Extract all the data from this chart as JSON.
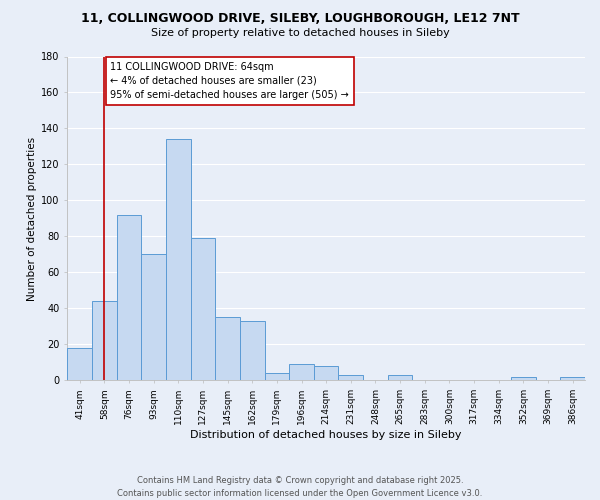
{
  "title_line1": "11, COLLINGWOOD DRIVE, SILEBY, LOUGHBOROUGH, LE12 7NT",
  "title_line2": "Size of property relative to detached houses in Sileby",
  "xlabel": "Distribution of detached houses by size in Sileby",
  "ylabel": "Number of detached properties",
  "bar_labels": [
    "41sqm",
    "58sqm",
    "76sqm",
    "93sqm",
    "110sqm",
    "127sqm",
    "145sqm",
    "162sqm",
    "179sqm",
    "196sqm",
    "214sqm",
    "231sqm",
    "248sqm",
    "265sqm",
    "283sqm",
    "300sqm",
    "317sqm",
    "334sqm",
    "352sqm",
    "369sqm",
    "386sqm"
  ],
  "bar_values": [
    18,
    44,
    92,
    70,
    134,
    79,
    35,
    33,
    4,
    9,
    8,
    3,
    0,
    3,
    0,
    0,
    0,
    0,
    2,
    0,
    2
  ],
  "bar_color": "#c6d9f1",
  "bar_edge_color": "#5b9bd5",
  "vline_x": 1,
  "vline_color": "#c00000",
  "annotation_title": "11 COLLINGWOOD DRIVE: 64sqm",
  "annotation_line2": "← 4% of detached houses are smaller (23)",
  "annotation_line3": "95% of semi-detached houses are larger (505) →",
  "ylim": [
    0,
    180
  ],
  "yticks": [
    0,
    20,
    40,
    60,
    80,
    100,
    120,
    140,
    160,
    180
  ],
  "footer_line1": "Contains HM Land Registry data © Crown copyright and database right 2025.",
  "footer_line2": "Contains public sector information licensed under the Open Government Licence v3.0.",
  "bg_color": "#e8eef8",
  "grid_color": "#ffffff",
  "title1_fontsize": 9,
  "title2_fontsize": 8,
  "xlabel_fontsize": 8,
  "ylabel_fontsize": 7.5,
  "tick_fontsize": 6.5,
  "annotation_fontsize": 7,
  "footer_fontsize": 6
}
